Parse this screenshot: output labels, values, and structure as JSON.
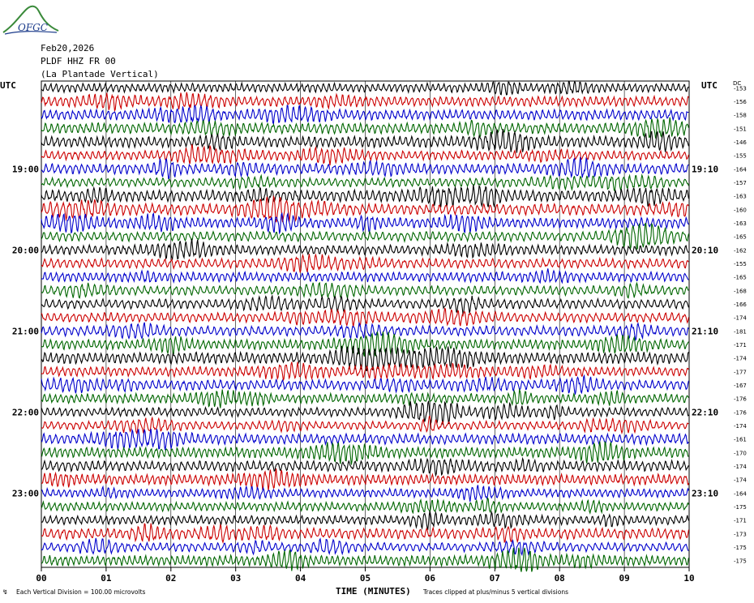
{
  "header": {
    "logo_text": "OFGC",
    "date": "Feb20,2026",
    "station": "PLDF HHZ FR 00",
    "location": "(La Plantade Vertical)"
  },
  "labels": {
    "utc_left": "UTC",
    "utc_right": "UTC",
    "dc_header": "DC",
    "xlabel": "TIME (MINUTES)",
    "scale_note": "Each Vertical Division =  100.00 microvolts",
    "clip_note": "Traces clipped at plus/minus 5 vertical divisions",
    "corner_mark": "↯"
  },
  "colors": {
    "trace_cycle": [
      "#000000",
      "#cc0000",
      "#0000cc",
      "#006600"
    ],
    "grid": "#000000"
  },
  "chart_data": {
    "type": "line",
    "title": "PLDF HHZ FR 00 (La Plantade Vertical)",
    "xlabel": "TIME (MINUTES)",
    "xlim": [
      0,
      10
    ],
    "x_ticks": [
      "00",
      "01",
      "02",
      "03",
      "04",
      "05",
      "06",
      "07",
      "08",
      "09",
      "10"
    ],
    "rows_per_hour": 6,
    "row_count": 36,
    "left_hour_labels": [
      {
        "row": 6,
        "text": "19:00"
      },
      {
        "row": 12,
        "text": "20:00"
      },
      {
        "row": 18,
        "text": "21:00"
      },
      {
        "row": 24,
        "text": "22:00"
      },
      {
        "row": 30,
        "text": "23:00"
      }
    ],
    "right_hour_labels": [
      {
        "row": 6,
        "text": "19:10"
      },
      {
        "row": 12,
        "text": "20:10"
      },
      {
        "row": 18,
        "text": "21:10"
      },
      {
        "row": 24,
        "text": "22:10"
      },
      {
        "row": 30,
        "text": "23:10"
      }
    ],
    "dc_offsets": [
      -153,
      -156,
      -158,
      -151,
      -146,
      -155,
      -164,
      -157,
      -163,
      -160,
      -163,
      -165,
      -162,
      -155,
      -165,
      -168,
      -166,
      -174,
      -181,
      -171,
      -174,
      -177,
      -167,
      -176,
      -176,
      -174,
      -161,
      -170,
      -174,
      -174,
      -164,
      -175,
      -171,
      -173,
      -175,
      -175
    ]
  }
}
